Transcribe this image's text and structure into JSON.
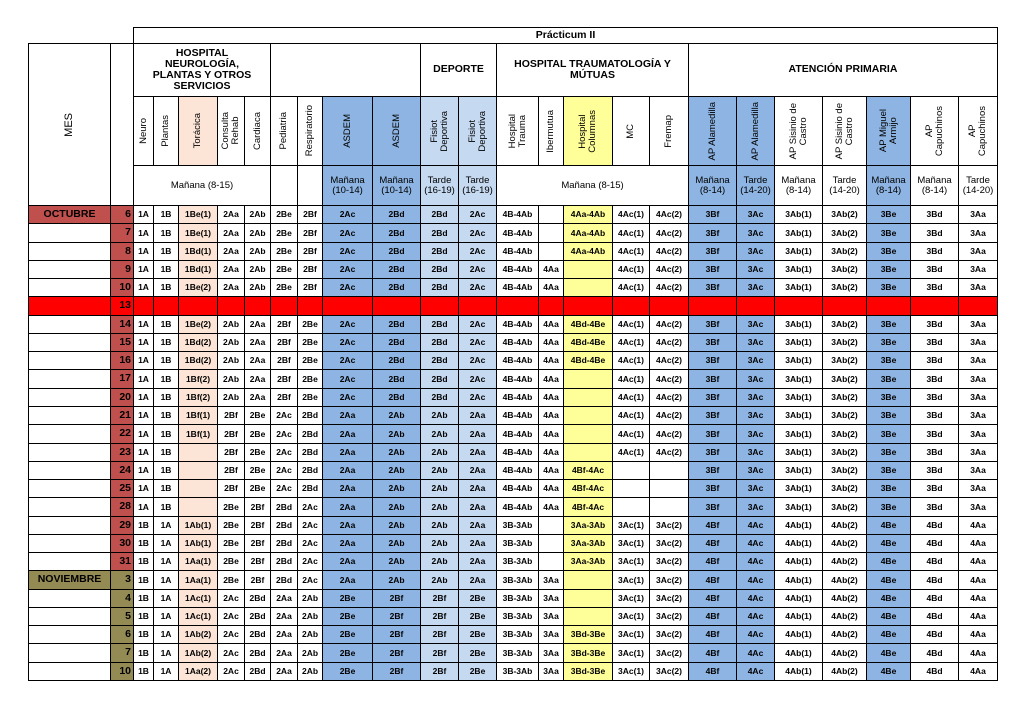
{
  "title": "Prácticum II",
  "mes_label": "MES",
  "groups": [
    "HOSPITAL NEUROLOGÍA, PLANTAS Y OTROS SERVICIOS",
    null,
    "DEPORTE",
    "HOSPITAL TRAUMATOLOGÍA Y MÚTUAS",
    "ATENCIÓN PRIMARIA"
  ],
  "columns": [
    [
      "Neuro"
    ],
    [
      "Plantas"
    ],
    [
      "Torácica"
    ],
    [
      "Consulta",
      "Rehab"
    ],
    [
      "Cardiaca"
    ],
    [
      "Pediatria"
    ],
    [
      "Respiratorio"
    ],
    [
      "ASDEM"
    ],
    [
      "ASDEM"
    ],
    [
      "Fisiot",
      "Deportiva"
    ],
    [
      "Fisiot",
      "Deportiva"
    ],
    [
      "Hospital",
      "Trauma"
    ],
    [
      "Ibermutua"
    ],
    [
      "Hospital",
      "Columnas"
    ],
    [
      "MC"
    ],
    [
      "Fremap"
    ],
    [
      "AP Alamedilla"
    ],
    [
      "AP Alamedilla"
    ],
    [
      "AP Sisinio de",
      "Castro"
    ],
    [
      "AP Sisinio de",
      "Castro"
    ],
    [
      "AP Miguel",
      "Armijo"
    ],
    [
      "AP",
      "Capuchinos"
    ],
    [
      "AP",
      "Capuchinos"
    ]
  ],
  "shifts": [
    "Mañana (8-15)",
    null,
    null,
    "Mañana (10-14)",
    "Mañana (10-14)",
    "Tarde (16-19)",
    "Tarde (16-19)",
    "Mañana (8-15)",
    "Mañana (8-14)",
    "Tarde (14-20)",
    "Mañana (8-14)",
    "Tarde (14-20)",
    "Mañana (8-14)",
    "Mañana (8-14)",
    "Tarde (14-20)"
  ],
  "rows": [
    {
      "month": "OCTUBRE",
      "day": 6,
      "cells": [
        "1A",
        "1B",
        "1Be(1)",
        "2Aa",
        "2Ab",
        "2Be",
        "2Bf",
        "2Ac",
        "2Bd",
        "2Bd",
        "2Ac",
        "4B-4Ab",
        null,
        "4Aa-4Ab",
        "4Ac(1)",
        "4Ac(2)",
        "3Bf",
        "3Ac",
        "3Ab(1)",
        "3Ab(2)",
        "3Be",
        "3Bd",
        "3Aa"
      ]
    },
    {
      "day": 7,
      "cells": [
        "1A",
        "1B",
        "1Be(1)",
        "2Aa",
        "2Ab",
        "2Be",
        "2Bf",
        "2Ac",
        "2Bd",
        "2Bd",
        "2Ac",
        "4B-4Ab",
        null,
        "4Aa-4Ab",
        "4Ac(1)",
        "4Ac(2)",
        "3Bf",
        "3Ac",
        "3Ab(1)",
        "3Ab(2)",
        "3Be",
        "3Bd",
        "3Aa"
      ]
    },
    {
      "day": 8,
      "cells": [
        "1A",
        "1B",
        "1Bd(1)",
        "2Aa",
        "2Ab",
        "2Be",
        "2Bf",
        "2Ac",
        "2Bd",
        "2Bd",
        "2Ac",
        "4B-4Ab",
        null,
        "4Aa-4Ab",
        "4Ac(1)",
        "4Ac(2)",
        "3Bf",
        "3Ac",
        "3Ab(1)",
        "3Ab(2)",
        "3Be",
        "3Bd",
        "3Aa"
      ]
    },
    {
      "day": 9,
      "cells": [
        "1A",
        "1B",
        "1Bd(1)",
        "2Aa",
        "2Ab",
        "2Be",
        "2Bf",
        "2Ac",
        "2Bd",
        "2Bd",
        "2Ac",
        "4B-4Ab",
        "4Aa",
        null,
        "4Ac(1)",
        "4Ac(2)",
        "3Bf",
        "3Ac",
        "3Ab(1)",
        "3Ab(2)",
        "3Be",
        "3Bd",
        "3Aa"
      ]
    },
    {
      "day": 10,
      "cells": [
        "1A",
        "1B",
        "1Be(2)",
        "2Aa",
        "2Ab",
        "2Be",
        "2Bf",
        "2Ac",
        "2Bd",
        "2Bd",
        "2Ac",
        "4B-4Ab",
        "4Aa",
        null,
        "4Ac(1)",
        "4Ac(2)",
        "3Bf",
        "3Ac",
        "3Ab(1)",
        "3Ab(2)",
        "3Be",
        "3Bd",
        "3Aa"
      ]
    },
    {
      "day": 13,
      "holiday": true,
      "cells": [
        null,
        null,
        null,
        null,
        null,
        null,
        null,
        null,
        null,
        null,
        null,
        null,
        null,
        null,
        null,
        null,
        null,
        null,
        null,
        null,
        null,
        null,
        null
      ]
    },
    {
      "day": 14,
      "cells": [
        "1A",
        "1B",
        "1Be(2)",
        "2Ab",
        "2Aa",
        "2Bf",
        "2Be",
        "2Ac",
        "2Bd",
        "2Bd",
        "2Ac",
        "4B-4Ab",
        "4Aa",
        "4Bd-4Be",
        "4Ac(1)",
        "4Ac(2)",
        "3Bf",
        "3Ac",
        "3Ab(1)",
        "3Ab(2)",
        "3Be",
        "3Bd",
        "3Aa"
      ]
    },
    {
      "day": 15,
      "cells": [
        "1A",
        "1B",
        "1Bd(2)",
        "2Ab",
        "2Aa",
        "2Bf",
        "2Be",
        "2Ac",
        "2Bd",
        "2Bd",
        "2Ac",
        "4B-4Ab",
        "4Aa",
        "4Bd-4Be",
        "4Ac(1)",
        "4Ac(2)",
        "3Bf",
        "3Ac",
        "3Ab(1)",
        "3Ab(2)",
        "3Be",
        "3Bd",
        "3Aa"
      ]
    },
    {
      "day": 16,
      "cells": [
        "1A",
        "1B",
        "1Bd(2)",
        "2Ab",
        "2Aa",
        "2Bf",
        "2Be",
        "2Ac",
        "2Bd",
        "2Bd",
        "2Ac",
        "4B-4Ab",
        "4Aa",
        "4Bd-4Be",
        "4Ac(1)",
        "4Ac(2)",
        "3Bf",
        "3Ac",
        "3Ab(1)",
        "3Ab(2)",
        "3Be",
        "3Bd",
        "3Aa"
      ]
    },
    {
      "day": 17,
      "cells": [
        "1A",
        "1B",
        "1Bf(2)",
        "2Ab",
        "2Aa",
        "2Bf",
        "2Be",
        "2Ac",
        "2Bd",
        "2Bd",
        "2Ac",
        "4B-4Ab",
        "4Aa",
        null,
        "4Ac(1)",
        "4Ac(2)",
        "3Bf",
        "3Ac",
        "3Ab(1)",
        "3Ab(2)",
        "3Be",
        "3Bd",
        "3Aa"
      ]
    },
    {
      "day": 20,
      "cells": [
        "1A",
        "1B",
        "1Bf(2)",
        "2Ab",
        "2Aa",
        "2Bf",
        "2Be",
        "2Ac",
        "2Bd",
        "2Bd",
        "2Ac",
        "4B-4Ab",
        "4Aa",
        null,
        "4Ac(1)",
        "4Ac(2)",
        "3Bf",
        "3Ac",
        "3Ab(1)",
        "3Ab(2)",
        "3Be",
        "3Bd",
        "3Aa"
      ]
    },
    {
      "day": 21,
      "cells": [
        "1A",
        "1B",
        "1Bf(1)",
        "2Bf",
        "2Be",
        "2Ac",
        "2Bd",
        "2Aa",
        "2Ab",
        "2Ab",
        "2Aa",
        "4B-4Ab",
        "4Aa",
        null,
        "4Ac(1)",
        "4Ac(2)",
        "3Bf",
        "3Ac",
        "3Ab(1)",
        "3Ab(2)",
        "3Be",
        "3Bd",
        "3Aa"
      ]
    },
    {
      "day": 22,
      "cells": [
        "1A",
        "1B",
        "1Bf(1)",
        "2Bf",
        "2Be",
        "2Ac",
        "2Bd",
        "2Aa",
        "2Ab",
        "2Ab",
        "2Aa",
        "4B-4Ab",
        "4Aa",
        null,
        "4Ac(1)",
        "4Ac(2)",
        "3Bf",
        "3Ac",
        "3Ab(1)",
        "3Ab(2)",
        "3Be",
        "3Bd",
        "3Aa"
      ]
    },
    {
      "day": 23,
      "cells": [
        "1A",
        "1B",
        null,
        "2Bf",
        "2Be",
        "2Ac",
        "2Bd",
        "2Aa",
        "2Ab",
        "2Ab",
        "2Aa",
        "4B-4Ab",
        "4Aa",
        null,
        "4Ac(1)",
        "4Ac(2)",
        "3Bf",
        "3Ac",
        "3Ab(1)",
        "3Ab(2)",
        "3Be",
        "3Bd",
        "3Aa"
      ]
    },
    {
      "day": 24,
      "cells": [
        "1A",
        "1B",
        null,
        "2Bf",
        "2Be",
        "2Ac",
        "2Bd",
        "2Aa",
        "2Ab",
        "2Ab",
        "2Aa",
        "4B-4Ab",
        "4Aa",
        "4Bf-4Ac",
        null,
        null,
        "3Bf",
        "3Ac",
        "3Ab(1)",
        "3Ab(2)",
        "3Be",
        "3Bd",
        "3Aa"
      ]
    },
    {
      "day": 25,
      "cells": [
        "1A",
        "1B",
        null,
        "2Bf",
        "2Be",
        "2Ac",
        "2Bd",
        "2Aa",
        "2Ab",
        "2Ab",
        "2Aa",
        "4B-4Ab",
        "4Aa",
        "4Bf-4Ac",
        null,
        null,
        "3Bf",
        "3Ac",
        "3Ab(1)",
        "3Ab(2)",
        "3Be",
        "3Bd",
        "3Aa"
      ]
    },
    {
      "day": 28,
      "cells": [
        "1A",
        "1B",
        null,
        "2Be",
        "2Bf",
        "2Bd",
        "2Ac",
        "2Aa",
        "2Ab",
        "2Ab",
        "2Aa",
        "4B-4Ab",
        "4Aa",
        "4Bf-4Ac",
        null,
        null,
        "3Bf",
        "3Ac",
        "3Ab(1)",
        "3Ab(2)",
        "3Be",
        "3Bd",
        "3Aa"
      ]
    },
    {
      "day": 29,
      "cells": [
        "1B",
        "1A",
        "1Ab(1)",
        "2Be",
        "2Bf",
        "2Bd",
        "2Ac",
        "2Aa",
        "2Ab",
        "2Ab",
        "2Aa",
        "3B-3Ab",
        null,
        "3Aa-3Ab",
        "3Ac(1)",
        "3Ac(2)",
        "4Bf",
        "4Ac",
        "4Ab(1)",
        "4Ab(2)",
        "4Be",
        "4Bd",
        "4Aa"
      ]
    },
    {
      "day": 30,
      "cells": [
        "1B",
        "1A",
        "1Ab(1)",
        "2Be",
        "2Bf",
        "2Bd",
        "2Ac",
        "2Aa",
        "2Ab",
        "2Ab",
        "2Aa",
        "3B-3Ab",
        null,
        "3Aa-3Ab",
        "3Ac(1)",
        "3Ac(2)",
        "4Bf",
        "4Ac",
        "4Ab(1)",
        "4Ab(2)",
        "4Be",
        "4Bd",
        "4Aa"
      ]
    },
    {
      "day": 31,
      "cells": [
        "1B",
        "1A",
        "1Aa(1)",
        "2Be",
        "2Bf",
        "2Bd",
        "2Ac",
        "2Aa",
        "2Ab",
        "2Ab",
        "2Aa",
        "3B-3Ab",
        null,
        "3Aa-3Ab",
        "3Ac(1)",
        "3Ac(2)",
        "4Bf",
        "4Ac",
        "4Ab(1)",
        "4Ab(2)",
        "4Be",
        "4Bd",
        "4Aa"
      ]
    },
    {
      "month": "NOVIEMBRE",
      "day": 3,
      "cells": [
        "1B",
        "1A",
        "1Aa(1)",
        "2Be",
        "2Bf",
        "2Bd",
        "2Ac",
        "2Aa",
        "2Ab",
        "2Ab",
        "2Aa",
        "3B-3Ab",
        "3Aa",
        null,
        "3Ac(1)",
        "3Ac(2)",
        "4Bf",
        "4Ac",
        "4Ab(1)",
        "4Ab(2)",
        "4Be",
        "4Bd",
        "4Aa"
      ]
    },
    {
      "day": 4,
      "cells": [
        "1B",
        "1A",
        "1Ac(1)",
        "2Ac",
        "2Bd",
        "2Aa",
        "2Ab",
        "2Be",
        "2Bf",
        "2Bf",
        "2Be",
        "3B-3Ab",
        "3Aa",
        null,
        "3Ac(1)",
        "3Ac(2)",
        "4Bf",
        "4Ac",
        "4Ab(1)",
        "4Ab(2)",
        "4Be",
        "4Bd",
        "4Aa"
      ]
    },
    {
      "day": 5,
      "cells": [
        "1B",
        "1A",
        "1Ac(1)",
        "2Ac",
        "2Bd",
        "2Aa",
        "2Ab",
        "2Be",
        "2Bf",
        "2Bf",
        "2Be",
        "3B-3Ab",
        "3Aa",
        null,
        "3Ac(1)",
        "3Ac(2)",
        "4Bf",
        "4Ac",
        "4Ab(1)",
        "4Ab(2)",
        "4Be",
        "4Bd",
        "4Aa"
      ]
    },
    {
      "day": 6,
      "cells": [
        "1B",
        "1A",
        "1Ab(2)",
        "2Ac",
        "2Bd",
        "2Aa",
        "2Ab",
        "2Be",
        "2Bf",
        "2Bf",
        "2Be",
        "3B-3Ab",
        "3Aa",
        "3Bd-3Be",
        "3Ac(1)",
        "3Ac(2)",
        "4Bf",
        "4Ac",
        "4Ab(1)",
        "4Ab(2)",
        "4Be",
        "4Bd",
        "4Aa"
      ]
    },
    {
      "day": 7,
      "cells": [
        "1B",
        "1A",
        "1Ab(2)",
        "2Ac",
        "2Bd",
        "2Aa",
        "2Ab",
        "2Be",
        "2Bf",
        "2Bf",
        "2Be",
        "3B-3Ab",
        "3Aa",
        "3Bd-3Be",
        "3Ac(1)",
        "3Ac(2)",
        "4Bf",
        "4Ac",
        "4Ab(1)",
        "4Ab(2)",
        "4Be",
        "4Bd",
        "4Aa"
      ]
    },
    {
      "day": 10,
      "cells": [
        "1B",
        "1A",
        "1Aa(2)",
        "2Ac",
        "2Bd",
        "2Aa",
        "2Ab",
        "2Be",
        "2Bf",
        "2Bf",
        "2Be",
        "3B-3Ab",
        "3Aa",
        "3Bd-3Be",
        "3Ac(1)",
        "3Ac(2)",
        "4Bf",
        "4Ac",
        "4Ab(1)",
        "4Ab(2)",
        "4Be",
        "4Bd",
        "4Aa"
      ]
    }
  ]
}
